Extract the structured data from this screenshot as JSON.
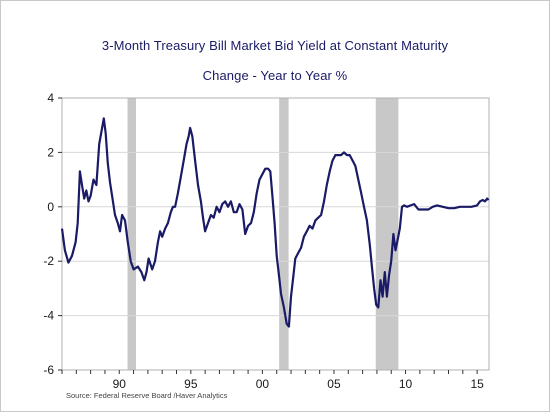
{
  "chart_data": {
    "type": "line",
    "title": "3-Month Treasury Bill Market Bid Yield at Constant Maturity",
    "subtitle": "Change - Year to Year    %",
    "source": "Source:  Federal Reserve Board /Haver Analytics",
    "xlabel": "",
    "ylabel": "",
    "ylim": [
      -6,
      4
    ],
    "xlim": [
      1986.0,
      2015.83
    ],
    "y_ticks": [
      4,
      2,
      0,
      -2,
      -4,
      -6
    ],
    "x_ticks": [
      {
        "value": 1990,
        "label": "90"
      },
      {
        "value": 1995,
        "label": "95"
      },
      {
        "value": 2000,
        "label": "00"
      },
      {
        "value": 2005,
        "label": "05"
      },
      {
        "value": 2010,
        "label": "10"
      },
      {
        "value": 2015,
        "label": "15"
      }
    ],
    "grid": "horizontal",
    "recessions": [
      {
        "start": 1990.58,
        "end": 1991.17
      },
      {
        "start": 2001.17,
        "end": 2001.83
      },
      {
        "start": 2007.92,
        "end": 2009.5
      }
    ],
    "colors": {
      "line": "#1a1a66",
      "recession": "#c8c8c8",
      "grid": "#d8d8d8"
    },
    "series": [
      {
        "values": [
          [
            1986.0,
            -0.8
          ],
          [
            1986.2,
            -1.6
          ],
          [
            1986.45,
            -2.05
          ],
          [
            1986.7,
            -1.8
          ],
          [
            1986.95,
            -1.3
          ],
          [
            1987.1,
            -0.6
          ],
          [
            1987.25,
            1.3
          ],
          [
            1987.4,
            0.8
          ],
          [
            1987.55,
            0.3
          ],
          [
            1987.7,
            0.6
          ],
          [
            1987.85,
            0.2
          ],
          [
            1988.0,
            0.4
          ],
          [
            1988.2,
            1.0
          ],
          [
            1988.4,
            0.8
          ],
          [
            1988.6,
            2.3
          ],
          [
            1988.8,
            2.9
          ],
          [
            1988.92,
            3.25
          ],
          [
            1989.05,
            2.7
          ],
          [
            1989.2,
            1.6
          ],
          [
            1989.35,
            0.9
          ],
          [
            1989.5,
            0.4
          ],
          [
            1989.7,
            -0.3
          ],
          [
            1989.9,
            -0.6
          ],
          [
            1990.05,
            -0.9
          ],
          [
            1990.2,
            -0.3
          ],
          [
            1990.4,
            -0.5
          ],
          [
            1990.6,
            -1.3
          ],
          [
            1990.8,
            -2.0
          ],
          [
            1991.0,
            -2.3
          ],
          [
            1991.3,
            -2.2
          ],
          [
            1991.55,
            -2.4
          ],
          [
            1991.75,
            -2.7
          ],
          [
            1991.9,
            -2.4
          ],
          [
            1992.05,
            -1.9
          ],
          [
            1992.3,
            -2.3
          ],
          [
            1992.5,
            -2.0
          ],
          [
            1992.7,
            -1.3
          ],
          [
            1992.85,
            -0.9
          ],
          [
            1993.0,
            -1.1
          ],
          [
            1993.2,
            -0.8
          ],
          [
            1993.4,
            -0.6
          ],
          [
            1993.6,
            -0.2
          ],
          [
            1993.75,
            0.0
          ],
          [
            1993.9,
            0.0
          ],
          [
            1994.1,
            0.5
          ],
          [
            1994.3,
            1.1
          ],
          [
            1994.5,
            1.7
          ],
          [
            1994.7,
            2.3
          ],
          [
            1994.85,
            2.6
          ],
          [
            1994.95,
            2.9
          ],
          [
            1995.1,
            2.6
          ],
          [
            1995.3,
            1.7
          ],
          [
            1995.5,
            0.8
          ],
          [
            1995.7,
            0.2
          ],
          [
            1995.85,
            -0.4
          ],
          [
            1996.0,
            -0.9
          ],
          [
            1996.2,
            -0.6
          ],
          [
            1996.4,
            -0.3
          ],
          [
            1996.6,
            -0.4
          ],
          [
            1996.8,
            0.0
          ],
          [
            1997.0,
            -0.2
          ],
          [
            1997.2,
            0.1
          ],
          [
            1997.4,
            0.2
          ],
          [
            1997.6,
            0.0
          ],
          [
            1997.8,
            0.2
          ],
          [
            1998.0,
            -0.2
          ],
          [
            1998.2,
            -0.2
          ],
          [
            1998.4,
            0.1
          ],
          [
            1998.6,
            -0.1
          ],
          [
            1998.8,
            -1.0
          ],
          [
            1999.0,
            -0.7
          ],
          [
            1999.2,
            -0.6
          ],
          [
            1999.4,
            -0.2
          ],
          [
            1999.6,
            0.5
          ],
          [
            1999.8,
            1.0
          ],
          [
            2000.0,
            1.2
          ],
          [
            2000.2,
            1.4
          ],
          [
            2000.4,
            1.4
          ],
          [
            2000.55,
            1.3
          ],
          [
            2000.7,
            0.4
          ],
          [
            2000.85,
            -0.6
          ],
          [
            2001.0,
            -1.8
          ],
          [
            2001.15,
            -2.5
          ],
          [
            2001.3,
            -3.2
          ],
          [
            2001.5,
            -3.7
          ],
          [
            2001.7,
            -4.3
          ],
          [
            2001.85,
            -4.4
          ],
          [
            2002.0,
            -3.3
          ],
          [
            2002.15,
            -2.6
          ],
          [
            2002.3,
            -1.9
          ],
          [
            2002.5,
            -1.7
          ],
          [
            2002.7,
            -1.5
          ],
          [
            2002.9,
            -1.1
          ],
          [
            2003.1,
            -0.9
          ],
          [
            2003.3,
            -0.7
          ],
          [
            2003.5,
            -0.8
          ],
          [
            2003.7,
            -0.5
          ],
          [
            2003.9,
            -0.4
          ],
          [
            2004.1,
            -0.3
          ],
          [
            2004.3,
            0.2
          ],
          [
            2004.5,
            0.8
          ],
          [
            2004.7,
            1.3
          ],
          [
            2004.9,
            1.7
          ],
          [
            2005.1,
            1.9
          ],
          [
            2005.3,
            1.9
          ],
          [
            2005.5,
            1.9
          ],
          [
            2005.7,
            2.0
          ],
          [
            2005.9,
            1.9
          ],
          [
            2006.1,
            1.9
          ],
          [
            2006.3,
            1.7
          ],
          [
            2006.5,
            1.5
          ],
          [
            2006.7,
            1.0
          ],
          [
            2006.9,
            0.5
          ],
          [
            2007.1,
            0.0
          ],
          [
            2007.3,
            -0.5
          ],
          [
            2007.5,
            -1.4
          ],
          [
            2007.65,
            -2.2
          ],
          [
            2007.8,
            -3.0
          ],
          [
            2007.95,
            -3.6
          ],
          [
            2008.1,
            -3.7
          ],
          [
            2008.25,
            -2.7
          ],
          [
            2008.4,
            -3.3
          ],
          [
            2008.55,
            -2.4
          ],
          [
            2008.7,
            -3.3
          ],
          [
            2008.85,
            -2.5
          ],
          [
            2009.0,
            -2.0
          ],
          [
            2009.15,
            -1.0
          ],
          [
            2009.3,
            -1.6
          ],
          [
            2009.45,
            -1.2
          ],
          [
            2009.6,
            -0.8
          ],
          [
            2009.75,
            0.0
          ],
          [
            2009.9,
            0.05
          ],
          [
            2010.1,
            0.0
          ],
          [
            2010.35,
            0.05
          ],
          [
            2010.6,
            0.1
          ],
          [
            2010.9,
            -0.1
          ],
          [
            2011.3,
            -0.1
          ],
          [
            2011.6,
            -0.1
          ],
          [
            2011.9,
            0.0
          ],
          [
            2012.2,
            0.05
          ],
          [
            2012.6,
            0.0
          ],
          [
            2013.0,
            -0.05
          ],
          [
            2013.4,
            -0.05
          ],
          [
            2013.8,
            0.0
          ],
          [
            2014.2,
            0.0
          ],
          [
            2014.6,
            0.0
          ],
          [
            2015.0,
            0.05
          ],
          [
            2015.2,
            0.2
          ],
          [
            2015.4,
            0.25
          ],
          [
            2015.55,
            0.2
          ],
          [
            2015.7,
            0.3
          ],
          [
            2015.8,
            0.25
          ]
        ]
      }
    ]
  }
}
